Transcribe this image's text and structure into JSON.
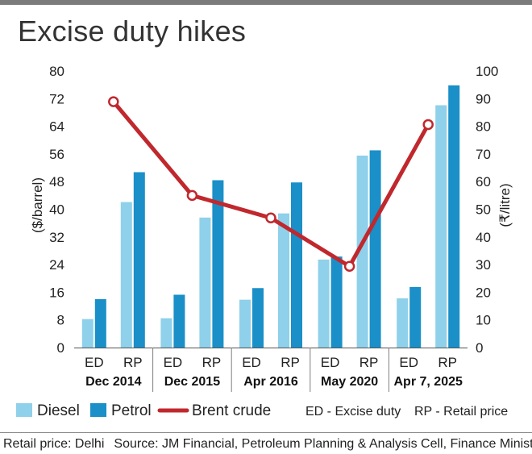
{
  "title": "Excise duty hikes",
  "footer": {
    "retail_note": "Retail price: Delhi",
    "source": "Source: JM Financial, Petroleum Planning & Analysis Cell, Finance Ministry"
  },
  "colors": {
    "diesel": "#8fd0ea",
    "petrol": "#1a8fc8",
    "brent": "#c0282d",
    "divider": "#7f7f7f"
  },
  "chart_data": {
    "type": "bar",
    "title": "Excise duty hikes",
    "groups": [
      "Dec 2014",
      "Dec 2015",
      "Apr 2016",
      "May 2020",
      "Apr 7, 2025"
    ],
    "sub_categories": [
      "ED",
      "RP"
    ],
    "left_axis": {
      "label": "($/barrel)",
      "range": [
        0,
        80
      ],
      "ticks": [
        "0",
        "8",
        "16",
        "24",
        "32",
        "40",
        "48",
        "56",
        "64",
        "72",
        "80"
      ]
    },
    "right_axis": {
      "label": "(₹/litre)",
      "range": [
        0,
        100
      ],
      "ticks": [
        "0",
        "10",
        "20",
        "30",
        "40",
        "50",
        "60",
        "70",
        "80",
        "90",
        "100"
      ]
    },
    "series": [
      {
        "name": "Diesel",
        "axis": "right",
        "type": "bar",
        "values": [
          [
            10.3,
            52.6
          ],
          [
            10.6,
            47.0
          ],
          [
            17.3,
            48.5
          ],
          [
            31.8,
            69.4
          ],
          [
            17.8,
            87.6
          ]
        ]
      },
      {
        "name": "Petrol",
        "axis": "right",
        "type": "bar",
        "values": [
          [
            17.5,
            63.4
          ],
          [
            19.1,
            60.5
          ],
          [
            21.5,
            59.7
          ],
          [
            32.9,
            71.3
          ],
          [
            21.9,
            94.8
          ]
        ]
      },
      {
        "name": "Brent crude",
        "axis": "left",
        "type": "line",
        "values": [
          71.1,
          44.0,
          37.5,
          23.5,
          64.5
        ]
      }
    ],
    "legend": {
      "position": "bottom",
      "items": [
        {
          "name": "Diesel",
          "kind": "box"
        },
        {
          "name": "Petrol",
          "kind": "box"
        },
        {
          "name": "Brent crude",
          "kind": "line"
        }
      ],
      "notes": [
        "ED - Excise duty",
        "RP - Retail price"
      ]
    },
    "grid": false
  }
}
